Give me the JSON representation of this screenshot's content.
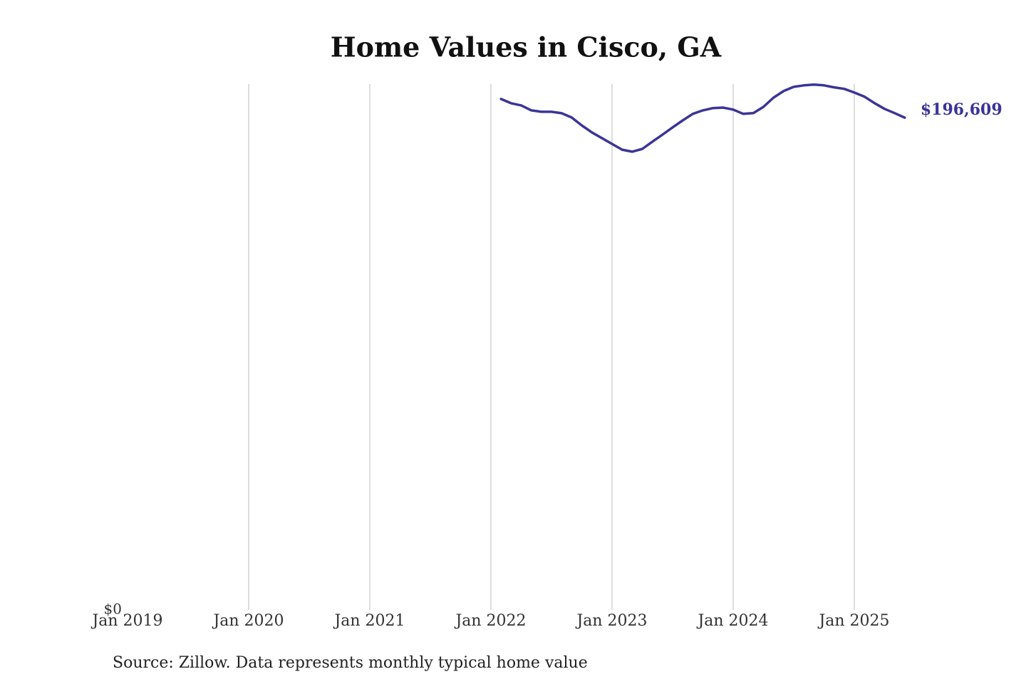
{
  "chart_data": {
    "type": "line",
    "title": "Home Values in Cisco, GA",
    "source": "Source: Zillow. Data represents monthly typical home value",
    "x": [
      "2022-02",
      "2022-03",
      "2022-04",
      "2022-05",
      "2022-06",
      "2022-07",
      "2022-08",
      "2022-09",
      "2022-10",
      "2022-11",
      "2022-12",
      "2023-01",
      "2023-02",
      "2023-03",
      "2023-04",
      "2023-05",
      "2023-06",
      "2023-07",
      "2023-08",
      "2023-09",
      "2023-10",
      "2023-11",
      "2023-12",
      "2024-01",
      "2024-02",
      "2024-03",
      "2024-04",
      "2024-05",
      "2024-06",
      "2024-07",
      "2024-08",
      "2024-09",
      "2024-10",
      "2024-11",
      "2024-12",
      "2025-01",
      "2025-02",
      "2025-03",
      "2025-04",
      "2025-05",
      "2025-06"
    ],
    "series": [
      {
        "color": "#3a3597",
        "values": [
          204060,
          202350,
          201500,
          199500,
          198930,
          198930,
          198360,
          196650,
          193500,
          190700,
          188400,
          186100,
          183800,
          183000,
          184100,
          187000,
          189800,
          192700,
          195500,
          198100,
          199500,
          200400,
          200600,
          199800,
          198100,
          198400,
          200900,
          204600,
          207200,
          208900,
          209500,
          209800,
          209500,
          208700,
          208100,
          206600,
          205000,
          202400,
          200100,
          198400,
          196609
        ],
        "value_labels": [
          null,
          null,
          null,
          null,
          null,
          null,
          null,
          null,
          null,
          null,
          null,
          null,
          null,
          null,
          null,
          null,
          null,
          null,
          null,
          null,
          null,
          null,
          null,
          null,
          null,
          null,
          null,
          null,
          null,
          null,
          null,
          null,
          null,
          null,
          null,
          null,
          null,
          null,
          null,
          null,
          "$196,609"
        ]
      }
    ],
    "xlim": [
      "2019-01",
      "2025-07"
    ],
    "xticks": [
      {
        "value": "2019-01",
        "label": "Jan 2019"
      },
      {
        "value": "2020-01",
        "label": "Jan 2020"
      },
      {
        "value": "2021-01",
        "label": "Jan 2021"
      },
      {
        "value": "2022-01",
        "label": "Jan 2022"
      },
      {
        "value": "2023-01",
        "label": "Jan 2023"
      },
      {
        "value": "2024-01",
        "label": "Jan 2024"
      },
      {
        "value": "2025-01",
        "label": "Jan 2025"
      }
    ],
    "ylim": [
      0,
      210000
    ],
    "yticks": [
      {
        "value": 0,
        "label": "$0"
      }
    ],
    "grid": true
  }
}
